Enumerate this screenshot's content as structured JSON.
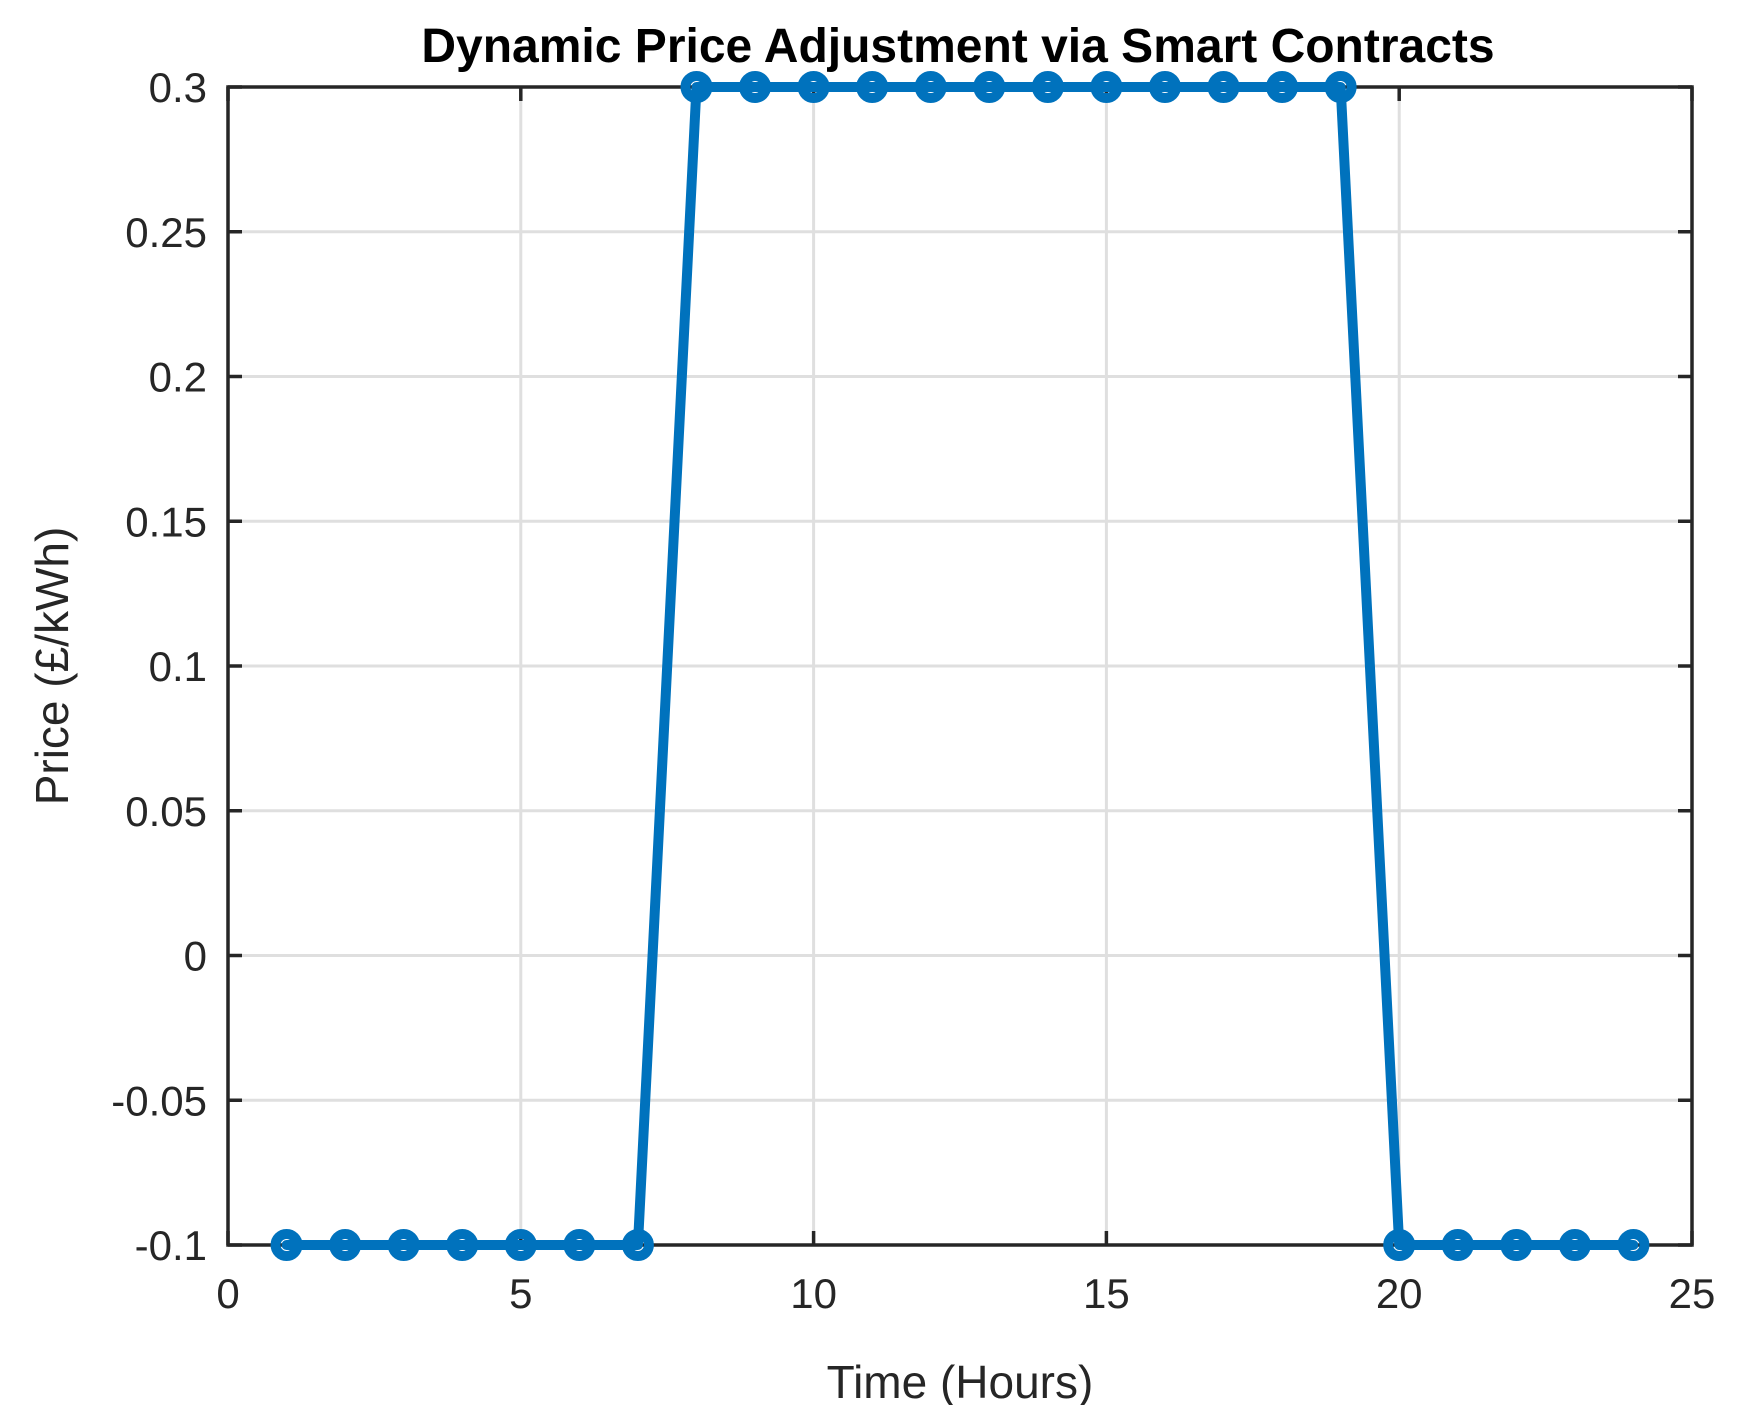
{
  "chart_data": {
    "type": "line",
    "title": "Dynamic Price Adjustment via Smart Contracts",
    "xlabel": "Time (Hours)",
    "ylabel": "Price (£/kWh)",
    "series": [
      {
        "name": "price",
        "x": [
          1,
          2,
          3,
          4,
          5,
          6,
          7,
          8,
          9,
          10,
          11,
          12,
          13,
          14,
          15,
          16,
          17,
          18,
          19,
          20,
          21,
          22,
          23,
          24
        ],
        "y": [
          -0.1,
          -0.1,
          -0.1,
          -0.1,
          -0.1,
          -0.1,
          -0.1,
          0.3,
          0.3,
          0.3,
          0.3,
          0.3,
          0.3,
          0.3,
          0.3,
          0.3,
          0.3,
          0.3,
          0.3,
          -0.1,
          -0.1,
          -0.1,
          -0.1,
          -0.1
        ],
        "line_color": "#0072BD",
        "marker": "open-circle"
      }
    ],
    "xlim": [
      0,
      25
    ],
    "ylim": [
      -0.1,
      0.3
    ],
    "xticks": [
      0,
      5,
      10,
      15,
      20,
      25
    ],
    "xtick_labels": [
      "0",
      "5",
      "10",
      "15",
      "20",
      "25"
    ],
    "yticks": [
      -0.1,
      -0.05,
      0,
      0.05,
      0.1,
      0.15,
      0.2,
      0.25,
      0.3
    ],
    "ytick_labels": [
      "-0.1",
      "-0.05",
      "0",
      "0.05",
      "0.1",
      "0.15",
      "0.2",
      "0.25",
      "0.3"
    ],
    "grid": true,
    "legend": "none",
    "colors": {
      "line": "#0072BD",
      "grid": "#dfdfdf",
      "axis": "#262626",
      "title": "#000000",
      "background": "#ffffff"
    }
  }
}
